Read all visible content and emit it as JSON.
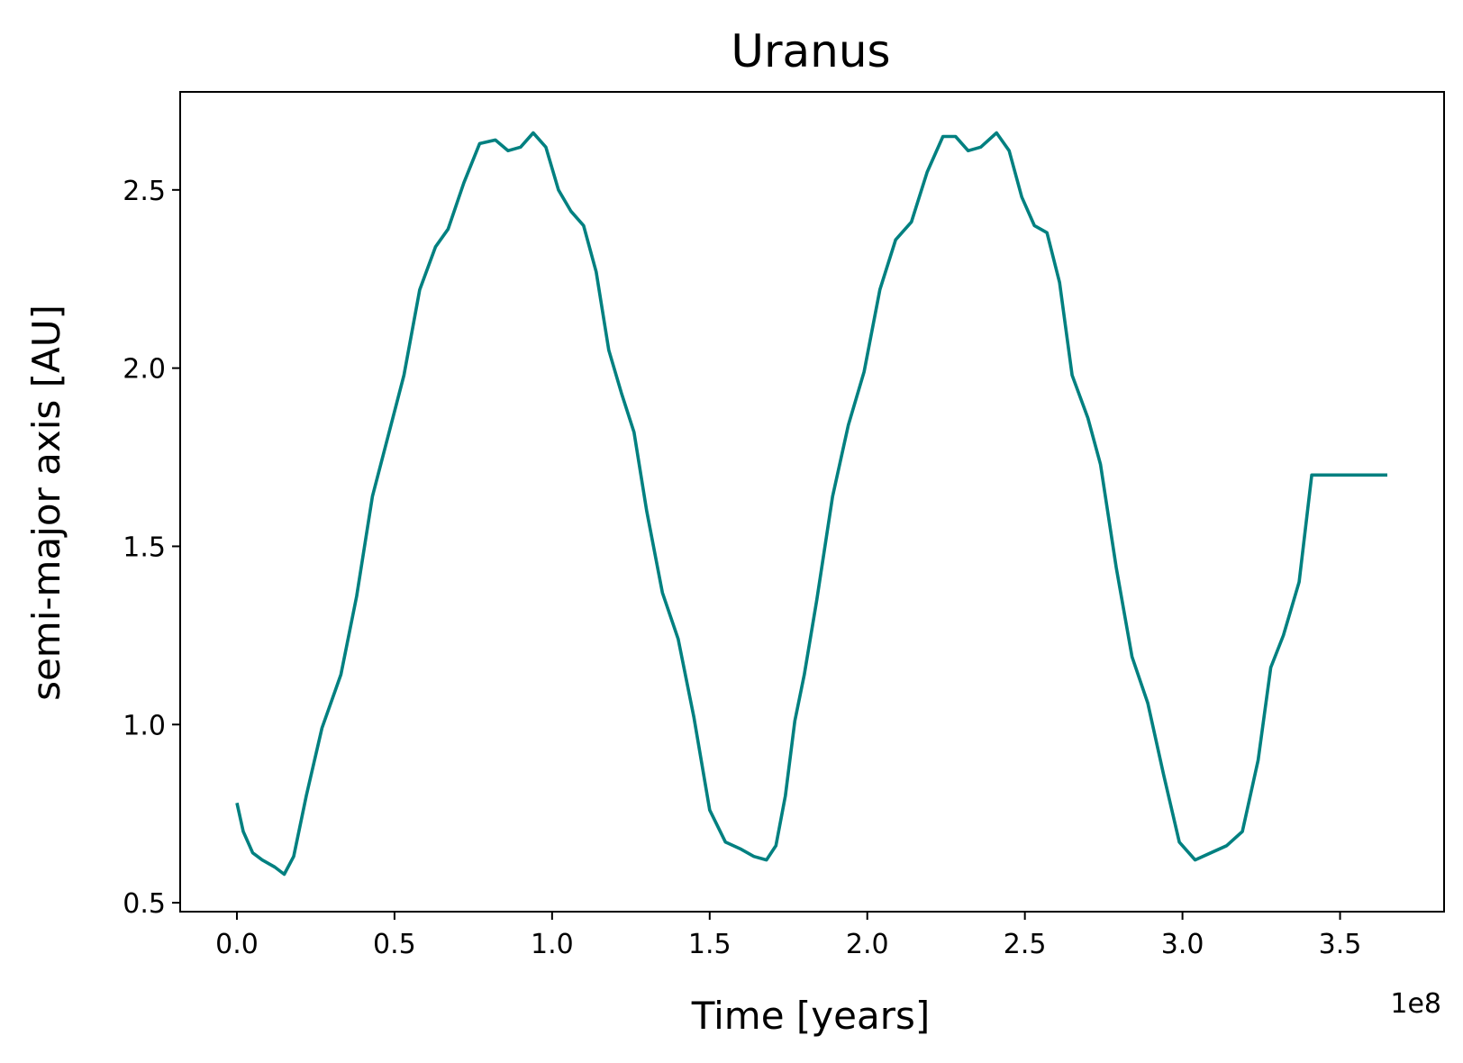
{
  "chart_data": {
    "type": "line",
    "title": "Uranus",
    "xlabel": "Time [years]",
    "ylabel": "semi-major axis [AU]",
    "x_offset_label": "1e8",
    "xlim": [
      -0.18,
      3.83
    ],
    "ylim": [
      0.475,
      2.775
    ],
    "xticks": [
      0.0,
      0.5,
      1.0,
      1.5,
      2.0,
      2.5,
      3.0,
      3.5
    ],
    "xtick_labels": [
      "0.0",
      "0.5",
      "1.0",
      "1.5",
      "2.0",
      "2.5",
      "3.0",
      "3.5"
    ],
    "yticks": [
      0.5,
      1.0,
      1.5,
      2.0,
      2.5
    ],
    "ytick_labels": [
      "0.5",
      "1.0",
      "1.5",
      "2.0",
      "2.5"
    ],
    "grid": false,
    "line_color": "#008080",
    "series": [
      {
        "x": [
          0.0,
          0.02,
          0.05,
          0.08,
          0.12,
          0.15,
          0.18,
          0.22,
          0.27,
          0.33,
          0.38,
          0.43,
          0.48,
          0.53,
          0.58,
          0.63,
          0.67,
          0.72,
          0.77,
          0.82,
          0.86,
          0.9,
          0.94,
          0.98,
          1.02,
          1.06,
          1.1,
          1.14,
          1.18,
          1.22,
          1.26,
          1.3,
          1.35,
          1.4,
          1.45,
          1.5,
          1.55,
          1.6,
          1.64,
          1.68,
          1.71,
          1.74,
          1.77,
          1.8,
          1.84,
          1.89,
          1.94,
          1.99,
          2.04,
          2.09,
          2.14,
          2.19,
          2.24,
          2.28,
          2.32,
          2.36,
          2.41,
          2.45,
          2.49,
          2.53,
          2.57,
          2.61,
          2.65,
          2.7,
          2.74,
          2.79,
          2.84,
          2.89,
          2.94,
          2.99,
          3.04,
          3.09,
          3.14,
          3.19,
          3.24,
          3.28,
          3.32,
          3.37,
          3.41,
          3.45,
          3.5,
          3.55,
          3.6,
          3.65
        ],
        "y": [
          0.78,
          0.7,
          0.64,
          0.62,
          0.6,
          0.58,
          0.63,
          0.8,
          0.99,
          1.14,
          1.36,
          1.64,
          1.81,
          1.98,
          2.22,
          2.34,
          2.39,
          2.52,
          2.63,
          2.64,
          2.61,
          2.62,
          2.66,
          2.62,
          2.5,
          2.44,
          2.4,
          2.27,
          2.05,
          1.93,
          1.82,
          1.6,
          1.37,
          1.24,
          1.02,
          0.76,
          0.67,
          0.65,
          0.63,
          0.62,
          0.66,
          0.8,
          1.01,
          1.14,
          1.35,
          1.64,
          1.84,
          1.99,
          2.22,
          2.36,
          2.41,
          2.55,
          2.65,
          2.65,
          2.61,
          2.62,
          2.66,
          2.61,
          2.48,
          2.4,
          2.38,
          2.24,
          1.98,
          1.86,
          1.73,
          1.44,
          1.19,
          1.06,
          0.86,
          0.67,
          0.62,
          0.64,
          0.66,
          0.7,
          0.9,
          1.16,
          1.25,
          1.4,
          1.7,
          1.7,
          1.7,
          1.7,
          1.7,
          1.7
        ]
      }
    ]
  }
}
